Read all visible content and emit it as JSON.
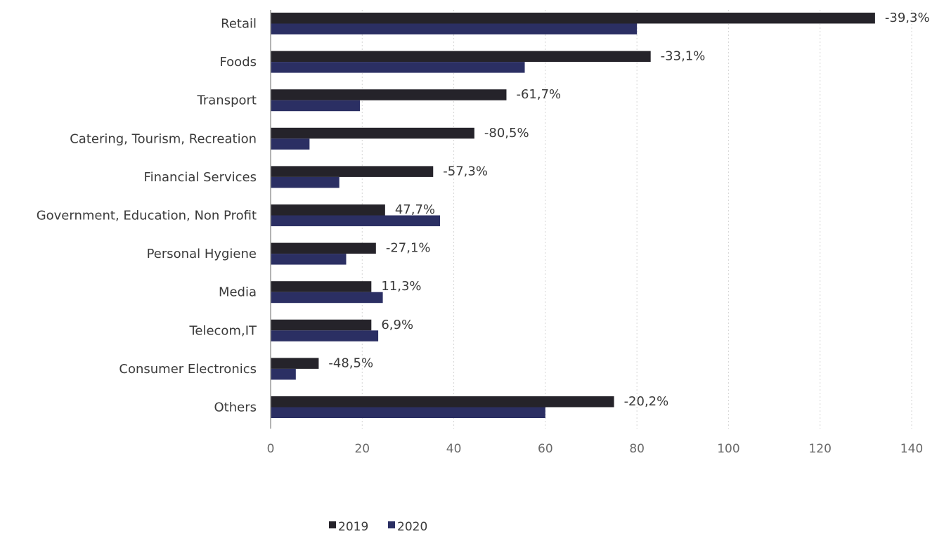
{
  "chart_data": {
    "type": "bar",
    "orientation": "horizontal",
    "categories": [
      "Retail",
      "Foods",
      "Transport",
      "Catering, Tourism, Recreation",
      "Financial Services",
      "Government, Education, Non Profit",
      "Personal Hygiene",
      "Media",
      "Telecom,IT",
      "Consumer Electronics",
      "Others"
    ],
    "series": [
      {
        "name": "2019",
        "color": "#25232a",
        "values": [
          132,
          83,
          51.5,
          44.5,
          35.5,
          25,
          23,
          22,
          22,
          10.5,
          75
        ]
      },
      {
        "name": "2020",
        "color": "#2b2f63",
        "values": [
          80,
          55.5,
          19.5,
          8.5,
          15,
          37,
          16.5,
          24.5,
          23.5,
          5.5,
          60
        ]
      }
    ],
    "data_labels": [
      "-39,3%",
      "-33,1%",
      "-61,7%",
      "-80,5%",
      "-57,3%",
      "47,7%",
      "-27,1%",
      "11,3%",
      "6,9%",
      "-48,5%",
      "-20,2%"
    ],
    "x_ticks": [
      "0",
      "20",
      "40",
      "60",
      "80",
      "100",
      "120",
      "140"
    ],
    "xlim": [
      0,
      140
    ],
    "grid": true,
    "legend": {
      "position": "bottom-center",
      "marker": "■"
    },
    "title": "",
    "xlabel": "",
    "ylabel": ""
  }
}
